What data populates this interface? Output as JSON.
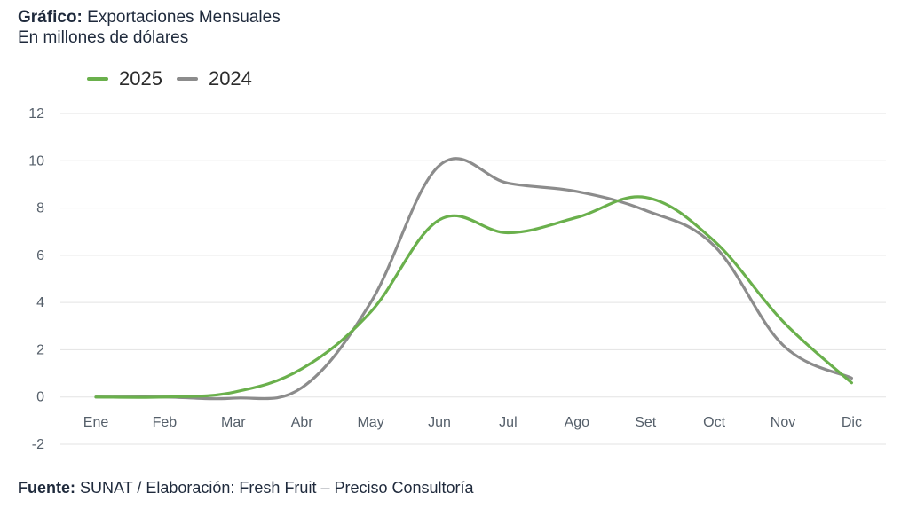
{
  "header": {
    "title_label": "Gráfico:",
    "title_text": "Exportaciones Mensuales",
    "subtitle": "En millones de dólares"
  },
  "footer": {
    "source_label": "Fuente:",
    "source_text": "SUNAT / Elaboración: Fresh Fruit – Preciso Consultoría"
  },
  "colors": {
    "2025": "#6ab04c",
    "2024": "#8c8c8c",
    "grid": "#e3e3e3"
  },
  "chart_data": {
    "type": "line",
    "categories": [
      "Ene",
      "Feb",
      "Mar",
      "Abr",
      "May",
      "Jun",
      "Jul",
      "Ago",
      "Set",
      "Oct",
      "Nov",
      "Dic"
    ],
    "ylim": [
      -2,
      12
    ],
    "yticks": [
      "12",
      "10",
      "8",
      "6",
      "4",
      "2",
      "0",
      "-2"
    ],
    "grid": true,
    "legend_position": "top-left",
    "series": [
      {
        "name": "2025",
        "values": [
          0,
          0,
          0.2,
          1.2,
          3.6,
          7.5,
          6.95,
          7.6,
          8.45,
          6.6,
          3.2,
          0.6
        ]
      },
      {
        "name": "2024",
        "values": [
          0,
          0,
          -0.05,
          0.4,
          4.0,
          9.8,
          9.05,
          8.7,
          7.9,
          6.4,
          2.2,
          0.8
        ]
      }
    ]
  }
}
